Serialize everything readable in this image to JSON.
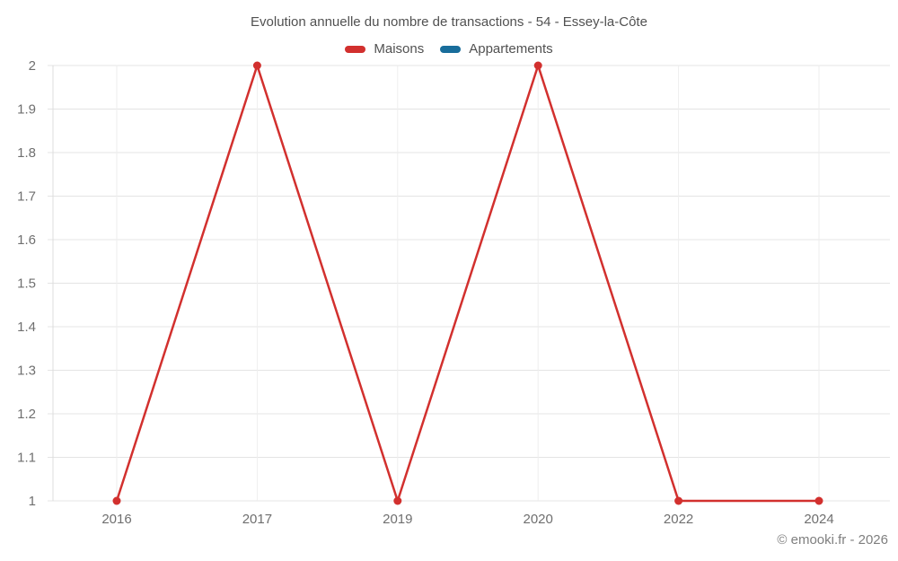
{
  "title": "Evolution annuelle du nombre de transactions - 54 - Essey-la-Côte",
  "legend": [
    {
      "label": "Maisons",
      "color": "#d2302e"
    },
    {
      "label": "Appartements",
      "color": "#186d9b"
    }
  ],
  "footer": "© emooki.fr - 2026",
  "colors": {
    "h_grid": "#e4e4e4",
    "v_grid": "#eeeeee",
    "axis": "#dcdcdc",
    "tick_label": "#6f6f6f"
  },
  "chart_data": {
    "type": "line",
    "title": "Evolution annuelle du nombre de transactions - 54 - Essey-la-Côte",
    "categories": [
      "2016",
      "2017",
      "2019",
      "2020",
      "2022",
      "2024"
    ],
    "series": [
      {
        "name": "Maisons",
        "color": "#d2302e",
        "values": [
          1,
          2,
          1,
          2,
          1,
          1
        ]
      },
      {
        "name": "Appartements",
        "color": "#186d9b",
        "values": []
      }
    ],
    "xlabel": "",
    "ylabel": "",
    "ylim": [
      1,
      2
    ],
    "yticks": [
      "1",
      "1.1",
      "1.2",
      "1.3",
      "1.4",
      "1.5",
      "1.6",
      "1.7",
      "1.8",
      "1.9",
      "2"
    ],
    "grid": true,
    "legend_position": "top",
    "marker": "circle"
  }
}
